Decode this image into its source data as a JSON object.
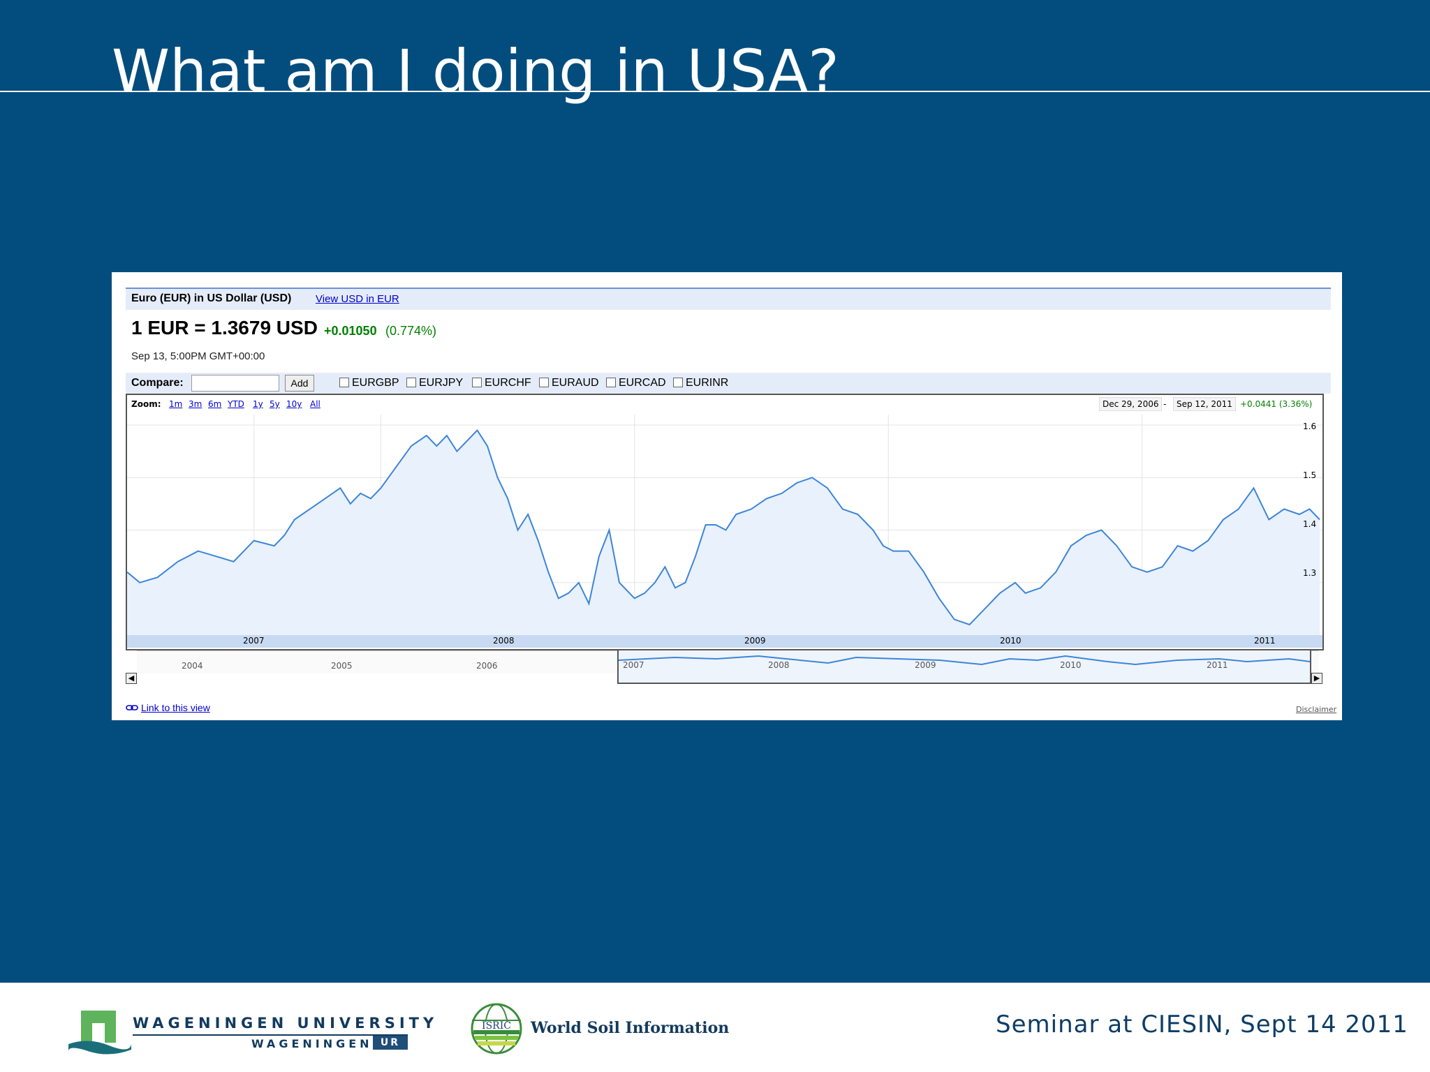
{
  "slide": {
    "title": "What am I doing in USA?",
    "footer_text": "Seminar at CIESIN, Sept 14 2011",
    "logos": {
      "wageningen_line1": "WAGENINGEN UNIVERSITY",
      "wageningen_line2": "WAGENINGEN",
      "wageningen_ur": "UR",
      "isric_badge": "ISRIC",
      "isric_text": "World Soil Information"
    }
  },
  "finance": {
    "header_title": "Euro (EUR) in US Dollar (USD)",
    "header_link": "View USD in EUR",
    "quote_main": "1 EUR = 1.3679 USD",
    "quote_change": "+0.01050",
    "quote_pct": "(0.774%)",
    "quote_time": "Sep 13, 5:00PM GMT+00:00",
    "compare_label": "Compare:",
    "add_label": "Add",
    "compare_items": [
      "EURGBP",
      "EURJPY",
      "EURCHF",
      "EURAUD",
      "EURCAD",
      "EURINR"
    ],
    "zoom_label": "Zoom:",
    "zoom_links": [
      "1m",
      "3m",
      "6m",
      "YTD",
      "1y",
      "5y",
      "10y",
      "All"
    ],
    "range_start": "Dec 29, 2006",
    "range_sep": "-",
    "range_end": "Sep 12, 2011",
    "range_change": "+0.0441 (3.36%)",
    "link_view": "Link to this view",
    "disclaimer": "Disclaimer",
    "nav_years": [
      "2004",
      "2005",
      "2006",
      "2007",
      "2008",
      "2009",
      "2010",
      "2011"
    ],
    "colors": {
      "line": "#3d85d8",
      "fill": "#e8f1fc",
      "positive": "#008000",
      "link": "#0000cc"
    }
  },
  "chart_data": {
    "type": "area",
    "title": "",
    "xlabel": "",
    "ylabel": "",
    "x_ticks": [
      "2007",
      "2008",
      "2009",
      "2010",
      "2011"
    ],
    "y_ticks": [
      "1.3",
      "1.4",
      "1.5",
      "1.6"
    ],
    "ylim": [
      1.2,
      1.62
    ],
    "xlim": [
      2007.0,
      2011.7
    ],
    "grid": true,
    "series": [
      {
        "x": [
          2007.0,
          2007.05,
          2007.12,
          2007.2,
          2007.28,
          2007.35,
          2007.42,
          2007.5,
          2007.58,
          2007.62,
          2007.66,
          2007.72,
          2007.78,
          2007.84,
          2007.88,
          2007.92,
          2007.96,
          2008.0,
          2008.06,
          2008.12,
          2008.18,
          2008.22,
          2008.26,
          2008.3,
          2008.34,
          2008.38,
          2008.42,
          2008.46,
          2008.5,
          2008.54,
          2008.58,
          2008.62,
          2008.66,
          2008.7,
          2008.74,
          2008.78,
          2008.82,
          2008.86,
          2008.9,
          2008.94,
          2008.98,
          2009.0,
          2009.04,
          2009.08,
          2009.12,
          2009.16,
          2009.2,
          2009.24,
          2009.28,
          2009.32,
          2009.36,
          2009.4,
          2009.46,
          2009.52,
          2009.58,
          2009.64,
          2009.7,
          2009.76,
          2009.82,
          2009.88,
          2009.94,
          2009.98,
          2010.02,
          2010.08,
          2010.14,
          2010.2,
          2010.26,
          2010.32,
          2010.38,
          2010.44,
          2010.5,
          2010.54,
          2010.6,
          2010.66,
          2010.72,
          2010.78,
          2010.84,
          2010.9,
          2010.96,
          2011.02,
          2011.08,
          2011.14,
          2011.2,
          2011.26,
          2011.32,
          2011.38,
          2011.44,
          2011.5,
          2011.56,
          2011.62,
          2011.66,
          2011.7
        ],
        "y": [
          1.32,
          1.3,
          1.31,
          1.34,
          1.36,
          1.35,
          1.34,
          1.38,
          1.37,
          1.39,
          1.42,
          1.44,
          1.46,
          1.48,
          1.45,
          1.47,
          1.46,
          1.48,
          1.52,
          1.56,
          1.58,
          1.56,
          1.58,
          1.55,
          1.57,
          1.59,
          1.56,
          1.5,
          1.46,
          1.4,
          1.43,
          1.38,
          1.32,
          1.27,
          1.28,
          1.3,
          1.26,
          1.35,
          1.4,
          1.3,
          1.28,
          1.27,
          1.28,
          1.3,
          1.33,
          1.29,
          1.3,
          1.35,
          1.41,
          1.41,
          1.4,
          1.43,
          1.44,
          1.46,
          1.47,
          1.49,
          1.5,
          1.48,
          1.44,
          1.43,
          1.4,
          1.37,
          1.36,
          1.36,
          1.32,
          1.27,
          1.23,
          1.22,
          1.25,
          1.28,
          1.3,
          1.28,
          1.29,
          1.32,
          1.37,
          1.39,
          1.4,
          1.37,
          1.33,
          1.32,
          1.33,
          1.37,
          1.36,
          1.38,
          1.42,
          1.44,
          1.48,
          1.42,
          1.44,
          1.43,
          1.44,
          1.42
        ]
      }
    ]
  }
}
